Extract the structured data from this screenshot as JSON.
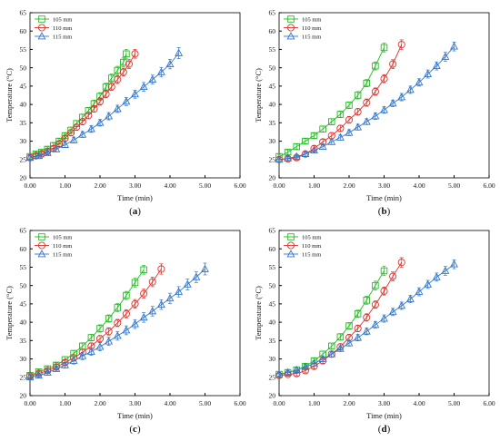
{
  "colors": {
    "s105": "#22bb22",
    "s110": "#e0302a",
    "s115": "#3377cc",
    "axis": "#000000"
  },
  "chart_data": [
    {
      "type": "line",
      "panel": "(a)",
      "xlabel": "Time (min)",
      "ylabel": "Temperature (°C)",
      "xlim": [
        0,
        6
      ],
      "ylim": [
        20,
        65
      ],
      "xticks": [
        "0.00",
        "1.00",
        "2.00",
        "3.00",
        "4.00",
        "5.00",
        "6.00"
      ],
      "yticks": [
        "20",
        "25",
        "30",
        "35",
        "40",
        "45",
        "50",
        "55",
        "60",
        "65"
      ],
      "legend_position": "top-left",
      "series": [
        {
          "name": "105 mm",
          "marker": "square",
          "x": [
            0,
            0.17,
            0.33,
            0.5,
            0.67,
            0.83,
            1.0,
            1.17,
            1.33,
            1.5,
            1.67,
            1.83,
            2.0,
            2.17,
            2.33,
            2.5,
            2.67,
            2.75
          ],
          "y": [
            25.8,
            26.5,
            27.0,
            27.8,
            28.8,
            30.0,
            31.5,
            33.0,
            34.8,
            36.5,
            38.3,
            40.2,
            42.2,
            44.8,
            47.2,
            49.3,
            51.5,
            53.8
          ],
          "err": [
            0.6,
            0.6,
            0.6,
            0.6,
            0.7,
            0.7,
            0.7,
            0.8,
            0.8,
            0.9,
            0.9,
            1.0,
            1.0,
            1.0,
            1.1,
            1.1,
            1.2,
            1.2
          ]
        },
        {
          "name": "110 mm",
          "marker": "circle",
          "x": [
            0,
            0.17,
            0.33,
            0.5,
            0.67,
            0.83,
            1.0,
            1.17,
            1.33,
            1.5,
            1.67,
            1.83,
            2.0,
            2.17,
            2.33,
            2.5,
            2.67,
            2.83,
            3.0
          ],
          "y": [
            25.5,
            26.0,
            26.5,
            27.2,
            28.0,
            29.3,
            30.8,
            32.3,
            33.8,
            35.3,
            37.0,
            38.8,
            40.8,
            42.8,
            44.8,
            46.8,
            48.8,
            51.0,
            53.8
          ],
          "err": [
            0.5,
            0.6,
            0.6,
            0.6,
            0.7,
            0.7,
            0.7,
            0.8,
            0.8,
            0.8,
            0.9,
            0.9,
            1.0,
            1.0,
            1.0,
            1.1,
            1.1,
            1.2,
            1.2
          ]
        },
        {
          "name": "115 mm",
          "marker": "triangle",
          "x": [
            0,
            0.25,
            0.5,
            0.75,
            1.0,
            1.25,
            1.5,
            1.75,
            2.0,
            2.25,
            2.5,
            2.75,
            3.0,
            3.25,
            3.5,
            3.75,
            4.0,
            4.25
          ],
          "y": [
            25.5,
            26.0,
            26.8,
            27.8,
            29.0,
            30.3,
            31.8,
            33.3,
            35.0,
            36.8,
            38.8,
            40.8,
            42.8,
            44.8,
            46.8,
            48.8,
            51.0,
            54.0
          ],
          "err": [
            0.5,
            0.6,
            0.6,
            0.7,
            0.7,
            0.8,
            0.8,
            0.9,
            0.9,
            1.0,
            1.0,
            1.1,
            1.1,
            1.2,
            1.2,
            1.3,
            1.3,
            1.5
          ]
        }
      ]
    },
    {
      "type": "line",
      "panel": "(b)",
      "xlabel": "Time (min)",
      "ylabel": "Temperature (°C)",
      "xlim": [
        0,
        6
      ],
      "ylim": [
        20,
        65
      ],
      "xticks": [
        "0.00",
        "1.00",
        "2.00",
        "3.00",
        "4.00",
        "5.00",
        "6.00"
      ],
      "yticks": [
        "20",
        "25",
        "30",
        "35",
        "40",
        "45",
        "50",
        "55",
        "60",
        "65"
      ],
      "legend_position": "top-left",
      "series": [
        {
          "name": "105 mm",
          "marker": "square",
          "x": [
            0,
            0.25,
            0.5,
            0.75,
            1.0,
            1.25,
            1.5,
            1.75,
            2.0,
            2.25,
            2.5,
            2.75,
            3.0
          ],
          "y": [
            25.8,
            27.0,
            28.5,
            30.0,
            31.5,
            33.3,
            35.3,
            37.3,
            39.8,
            42.5,
            45.8,
            50.5,
            55.5
          ],
          "err": [
            0.6,
            0.6,
            0.7,
            0.7,
            0.7,
            0.8,
            0.8,
            0.9,
            0.9,
            1.0,
            1.0,
            1.1,
            1.2
          ]
        },
        {
          "name": "110 mm",
          "marker": "circle",
          "x": [
            0,
            0.25,
            0.5,
            0.75,
            1.0,
            1.25,
            1.5,
            1.75,
            2.0,
            2.25,
            2.5,
            2.75,
            3.0,
            3.25,
            3.5
          ],
          "y": [
            25.0,
            25.2,
            25.5,
            26.5,
            28.0,
            29.8,
            31.5,
            33.5,
            35.8,
            38.0,
            40.5,
            43.5,
            47.0,
            51.0,
            56.3
          ],
          "err": [
            0.5,
            0.5,
            0.6,
            0.6,
            0.7,
            0.7,
            0.8,
            0.8,
            0.9,
            0.9,
            1.0,
            1.0,
            1.1,
            1.2,
            1.3
          ]
        },
        {
          "name": "115 mm",
          "marker": "triangle",
          "x": [
            0,
            0.25,
            0.5,
            0.75,
            1.0,
            1.25,
            1.5,
            1.75,
            2.0,
            2.25,
            2.5,
            2.75,
            3.0,
            3.25,
            3.5,
            3.75,
            4.0,
            4.25,
            4.5,
            4.75,
            5.0
          ],
          "y": [
            25.0,
            25.3,
            25.8,
            26.5,
            27.5,
            28.5,
            29.8,
            31.0,
            32.3,
            33.8,
            35.3,
            36.8,
            38.5,
            40.3,
            42.0,
            44.0,
            46.0,
            48.3,
            50.5,
            53.0,
            55.8
          ],
          "err": [
            0.5,
            0.5,
            0.6,
            0.6,
            0.6,
            0.7,
            0.7,
            0.7,
            0.8,
            0.8,
            0.8,
            0.9,
            0.9,
            0.9,
            1.0,
            1.0,
            1.0,
            1.1,
            1.1,
            1.2,
            1.2
          ]
        }
      ]
    },
    {
      "type": "line",
      "panel": "(c)",
      "xlabel": "Time (min)",
      "ylabel": "Temperature (°C)",
      "xlim": [
        0,
        6
      ],
      "ylim": [
        20,
        65
      ],
      "xticks": [
        "0.00",
        "1.00",
        "2.00",
        "3.00",
        "4.00",
        "5.00",
        "6.00"
      ],
      "yticks": [
        "20",
        "25",
        "30",
        "35",
        "40",
        "45",
        "50",
        "55",
        "60",
        "65"
      ],
      "legend_position": "top-left",
      "series": [
        {
          "name": "105 mm",
          "marker": "square",
          "x": [
            0,
            0.25,
            0.5,
            0.75,
            1.0,
            1.25,
            1.5,
            1.75,
            2.0,
            2.25,
            2.5,
            2.75,
            3.0,
            3.25
          ],
          "y": [
            25.5,
            26.5,
            27.3,
            28.3,
            29.8,
            31.5,
            33.5,
            35.8,
            38.3,
            41.0,
            44.0,
            47.3,
            50.8,
            54.3
          ],
          "err": [
            0.6,
            0.6,
            0.7,
            0.7,
            0.8,
            0.8,
            0.9,
            0.9,
            1.0,
            1.0,
            1.1,
            1.1,
            1.2,
            1.2
          ]
        },
        {
          "name": "110 mm",
          "marker": "circle",
          "x": [
            0,
            0.25,
            0.5,
            0.75,
            1.0,
            1.25,
            1.5,
            1.75,
            2.0,
            2.25,
            2.5,
            2.75,
            3.0,
            3.25,
            3.5,
            3.75
          ],
          "y": [
            25.3,
            26.0,
            26.8,
            27.8,
            29.0,
            30.3,
            31.8,
            33.5,
            35.5,
            37.5,
            39.8,
            42.3,
            45.0,
            47.8,
            51.0,
            54.5
          ],
          "err": [
            0.5,
            0.6,
            0.6,
            0.7,
            0.7,
            0.8,
            0.8,
            0.9,
            0.9,
            1.0,
            1.0,
            1.1,
            1.2,
            1.2,
            1.3,
            1.4
          ]
        },
        {
          "name": "115 mm",
          "marker": "triangle",
          "x": [
            0,
            0.25,
            0.5,
            0.75,
            1.0,
            1.25,
            1.5,
            1.75,
            2.0,
            2.25,
            2.5,
            2.75,
            3.0,
            3.25,
            3.5,
            3.75,
            4.0,
            4.25,
            4.5,
            4.75,
            5.0
          ],
          "y": [
            25.0,
            25.5,
            26.3,
            27.3,
            28.3,
            29.5,
            30.8,
            32.0,
            33.3,
            34.8,
            36.3,
            37.8,
            39.5,
            41.3,
            43.0,
            44.8,
            46.5,
            48.3,
            50.3,
            52.3,
            54.5
          ],
          "err": [
            0.6,
            0.6,
            0.7,
            0.7,
            0.8,
            0.9,
            1.0,
            1.0,
            1.1,
            1.1,
            1.2,
            1.2,
            1.2,
            1.3,
            1.3,
            1.3,
            1.4,
            1.4,
            1.5,
            1.5,
            1.6
          ]
        }
      ]
    },
    {
      "type": "line",
      "panel": "(d)",
      "xlabel": "Time (min)",
      "ylabel": "Temperature (°C)",
      "xlim": [
        0,
        6
      ],
      "ylim": [
        20,
        65
      ],
      "xticks": [
        "0.00",
        "1.00",
        "2.00",
        "3.00",
        "4.00",
        "5.00",
        "6.00"
      ],
      "yticks": [
        "20",
        "25",
        "30",
        "35",
        "40",
        "45",
        "50",
        "55",
        "60",
        "65"
      ],
      "legend_position": "top-left",
      "series": [
        {
          "name": "105 mm",
          "marker": "square",
          "x": [
            0,
            0.25,
            0.5,
            0.75,
            1.0,
            1.25,
            1.5,
            1.75,
            2.0,
            2.25,
            2.5,
            2.75,
            3.0
          ],
          "y": [
            25.8,
            26.3,
            27.0,
            28.0,
            29.5,
            31.3,
            33.5,
            36.0,
            39.0,
            42.3,
            46.0,
            50.0,
            54.0
          ],
          "err": [
            0.6,
            0.6,
            0.6,
            0.7,
            0.7,
            0.8,
            0.8,
            0.9,
            0.9,
            1.0,
            1.1,
            1.2,
            1.3
          ]
        },
        {
          "name": "110 mm",
          "marker": "circle",
          "x": [
            0,
            0.25,
            0.5,
            0.75,
            1.0,
            1.25,
            1.5,
            1.75,
            2.0,
            2.25,
            2.5,
            2.75,
            3.0,
            3.25,
            3.5
          ],
          "y": [
            25.5,
            25.8,
            26.0,
            26.8,
            28.0,
            29.5,
            31.3,
            33.3,
            35.8,
            38.3,
            41.3,
            44.8,
            48.5,
            52.5,
            56.3
          ],
          "err": [
            0.5,
            0.5,
            0.6,
            0.6,
            0.7,
            0.7,
            0.8,
            0.8,
            0.9,
            0.9,
            1.0,
            1.0,
            1.1,
            1.2,
            1.3
          ]
        },
        {
          "name": "115 mm",
          "marker": "triangle",
          "x": [
            0,
            0.25,
            0.5,
            0.75,
            1.0,
            1.25,
            1.5,
            1.75,
            2.0,
            2.25,
            2.5,
            2.75,
            3.0,
            3.25,
            3.5,
            3.75,
            4.0,
            4.25,
            4.5,
            4.75,
            5.0
          ],
          "y": [
            25.8,
            26.3,
            27.0,
            27.8,
            28.8,
            30.0,
            31.3,
            32.8,
            34.3,
            35.8,
            37.5,
            39.3,
            41.0,
            42.8,
            44.5,
            46.3,
            48.3,
            50.3,
            52.3,
            54.0,
            55.8
          ],
          "err": [
            0.5,
            0.6,
            0.6,
            0.7,
            0.7,
            0.7,
            0.8,
            0.8,
            0.8,
            0.9,
            0.9,
            0.9,
            1.0,
            1.0,
            1.0,
            1.0,
            1.1,
            1.1,
            1.1,
            1.2,
            1.2
          ]
        }
      ]
    }
  ]
}
